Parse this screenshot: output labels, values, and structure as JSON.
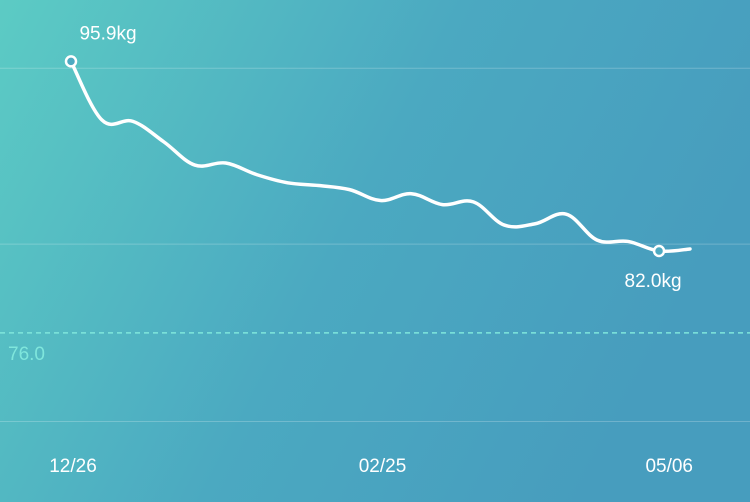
{
  "chart_data": {
    "type": "line",
    "categories": [
      "12/26",
      null,
      null,
      null,
      null,
      null,
      null,
      null,
      null,
      null,
      "02/25",
      null,
      null,
      null,
      null,
      null,
      null,
      null,
      null,
      null,
      "05/06"
    ],
    "series": [
      {
        "color": "#ffffff",
        "values": [
          95.9,
          91.6,
          91.5,
          90.0,
          88.3,
          88.45,
          87.6,
          87.0,
          86.8,
          86.5,
          85.7,
          86.2,
          85.4,
          85.6,
          83.9,
          84.0,
          84.7,
          82.8,
          82.7,
          82.0,
          82.15
        ],
        "value_labels": [
          "95.9kg",
          null,
          null,
          null,
          null,
          null,
          null,
          null,
          null,
          null,
          null,
          null,
          null,
          null,
          null,
          null,
          null,
          null,
          null,
          "82.0kg",
          null
        ]
      }
    ],
    "ylim": [
      63.6,
      100.4
    ],
    "yticks": [
      69.5,
      82.5,
      95.4
    ],
    "grid": true,
    "target": {
      "value": 76.0,
      "label": "76.0",
      "color": "#7fe6dc"
    }
  }
}
